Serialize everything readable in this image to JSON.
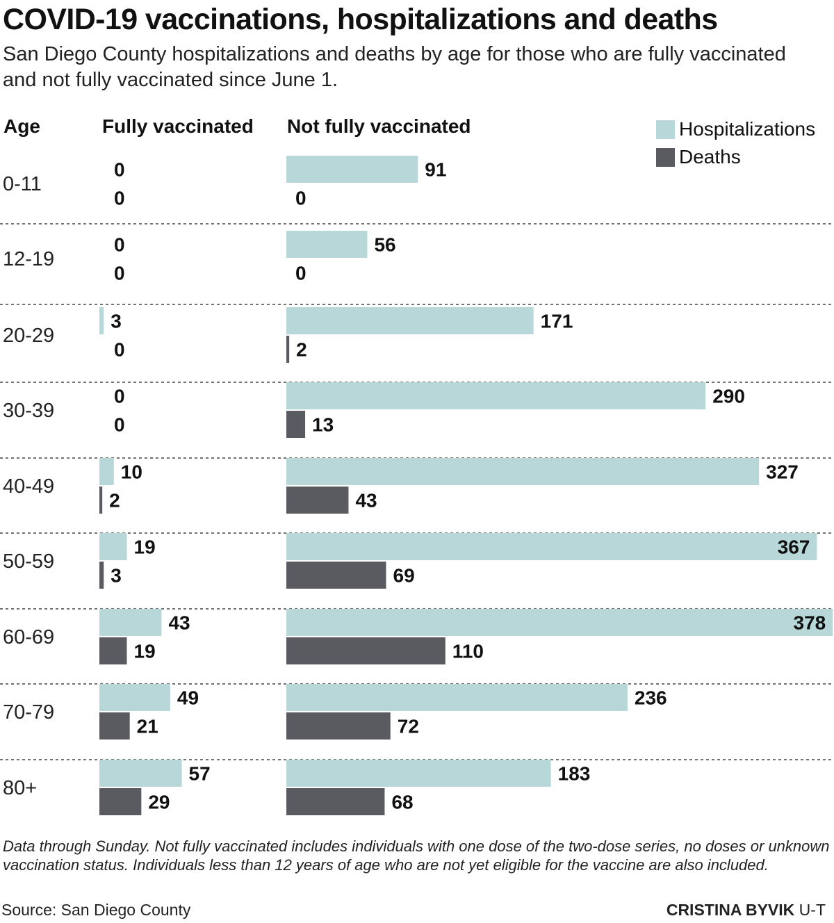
{
  "title": "COVID-19 vaccinations, hospitalizations and deaths",
  "subtitle": "San Diego County hospitalizations and deaths by age for those who are fully vaccinated and not fully vaccinated since June 1.",
  "columns": {
    "age": "Age",
    "vaccinated": "Fully vaccinated",
    "not_vaccinated": "Not fully vaccinated"
  },
  "legend": [
    {
      "label": "Hospitalizations",
      "color": "#b8d7d9"
    },
    {
      "label": "Deaths",
      "color": "#5a5b60"
    }
  ],
  "chart_data": {
    "type": "bar",
    "orientation": "horizontal",
    "categories": [
      "0-11",
      "12-19",
      "20-29",
      "30-39",
      "40-49",
      "50-59",
      "60-69",
      "70-79",
      "80+"
    ],
    "series": [
      {
        "name": "Hospitalizations",
        "group": "Fully vaccinated",
        "values": [
          0,
          0,
          3,
          0,
          10,
          19,
          43,
          49,
          57
        ]
      },
      {
        "name": "Deaths",
        "group": "Fully vaccinated",
        "values": [
          0,
          0,
          0,
          0,
          2,
          3,
          19,
          21,
          29
        ]
      },
      {
        "name": "Hospitalizations",
        "group": "Not fully vaccinated",
        "values": [
          91,
          56,
          171,
          290,
          327,
          367,
          378,
          236,
          183
        ]
      },
      {
        "name": "Deaths",
        "group": "Not fully vaccinated",
        "values": [
          0,
          0,
          2,
          13,
          43,
          69,
          110,
          72,
          68
        ]
      }
    ],
    "legend_position": "top-right",
    "grid": false
  },
  "note": "Data through Sunday. Not fully vaccinated includes individuals with one dose of the two-dose series, no doses or unknown vaccination status. Individuals less than 12 years of age who are not yet eligible for the vaccine are also included.",
  "source": "Source: San Diego County",
  "credit": {
    "name": "CRISTINA BYVIK",
    "org": "U-T"
  }
}
